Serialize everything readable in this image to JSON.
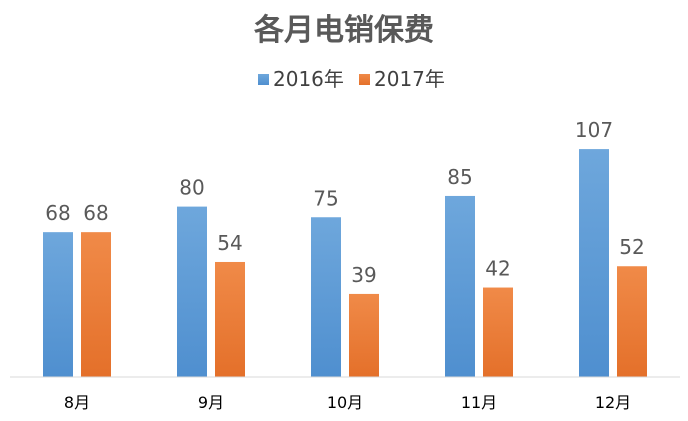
{
  "chart_data": {
    "type": "bar",
    "title": "各月电销保费",
    "categories": [
      "8月",
      "9月",
      "10月",
      "11月",
      "12月"
    ],
    "series": [
      {
        "name": "2016年",
        "values": [
          68,
          80,
          75,
          85,
          107
        ],
        "color": "#5b9bd5"
      },
      {
        "name": "2017年",
        "values": [
          68,
          54,
          39,
          42,
          52
        ],
        "color": "#ed7d31"
      }
    ],
    "legend_position": "top",
    "grid": false,
    "show_data_labels": true
  }
}
